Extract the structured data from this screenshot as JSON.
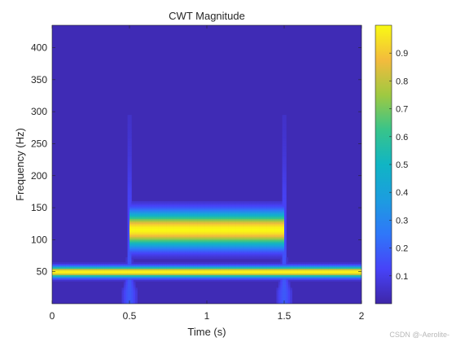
{
  "chart_data": {
    "type": "heatmap",
    "title": "CWT Magnitude",
    "xlabel": "Time (s)",
    "ylabel": "Frequency (Hz)",
    "xlim": [
      0,
      2
    ],
    "ylim": [
      0,
      435
    ],
    "x_ticks": [
      0,
      0.5,
      1,
      1.5,
      2
    ],
    "x_tick_labels": [
      "0",
      "0.5",
      "1",
      "1.5",
      "2"
    ],
    "y_ticks": [
      50,
      100,
      150,
      200,
      250,
      300,
      350,
      400
    ],
    "y_tick_labels": [
      "50",
      "100",
      "150",
      "200",
      "250",
      "300",
      "350",
      "400"
    ],
    "colorbar": {
      "colormap": "parula",
      "range": [
        0,
        1
      ],
      "ticks": [
        0.1,
        0.2,
        0.3,
        0.4,
        0.5,
        0.6,
        0.7,
        0.8,
        0.9
      ],
      "tick_labels": [
        "0.1",
        "0.2",
        "0.3",
        "0.4",
        "0.5",
        "0.6",
        "0.7",
        "0.8",
        "0.9"
      ]
    },
    "components": [
      {
        "kind": "tone",
        "frequency_hz": 50,
        "t_start": 0,
        "t_end": 2,
        "peak_magnitude": 1.0
      },
      {
        "kind": "tone",
        "frequency_hz": 116,
        "t_start": 0.5,
        "t_end": 1.5,
        "peak_magnitude": 1.0
      },
      {
        "kind": "transient",
        "time_s": 0.5
      },
      {
        "kind": "transient",
        "time_s": 1.5
      }
    ]
  },
  "watermark": "CSDN @-Aerolite-"
}
